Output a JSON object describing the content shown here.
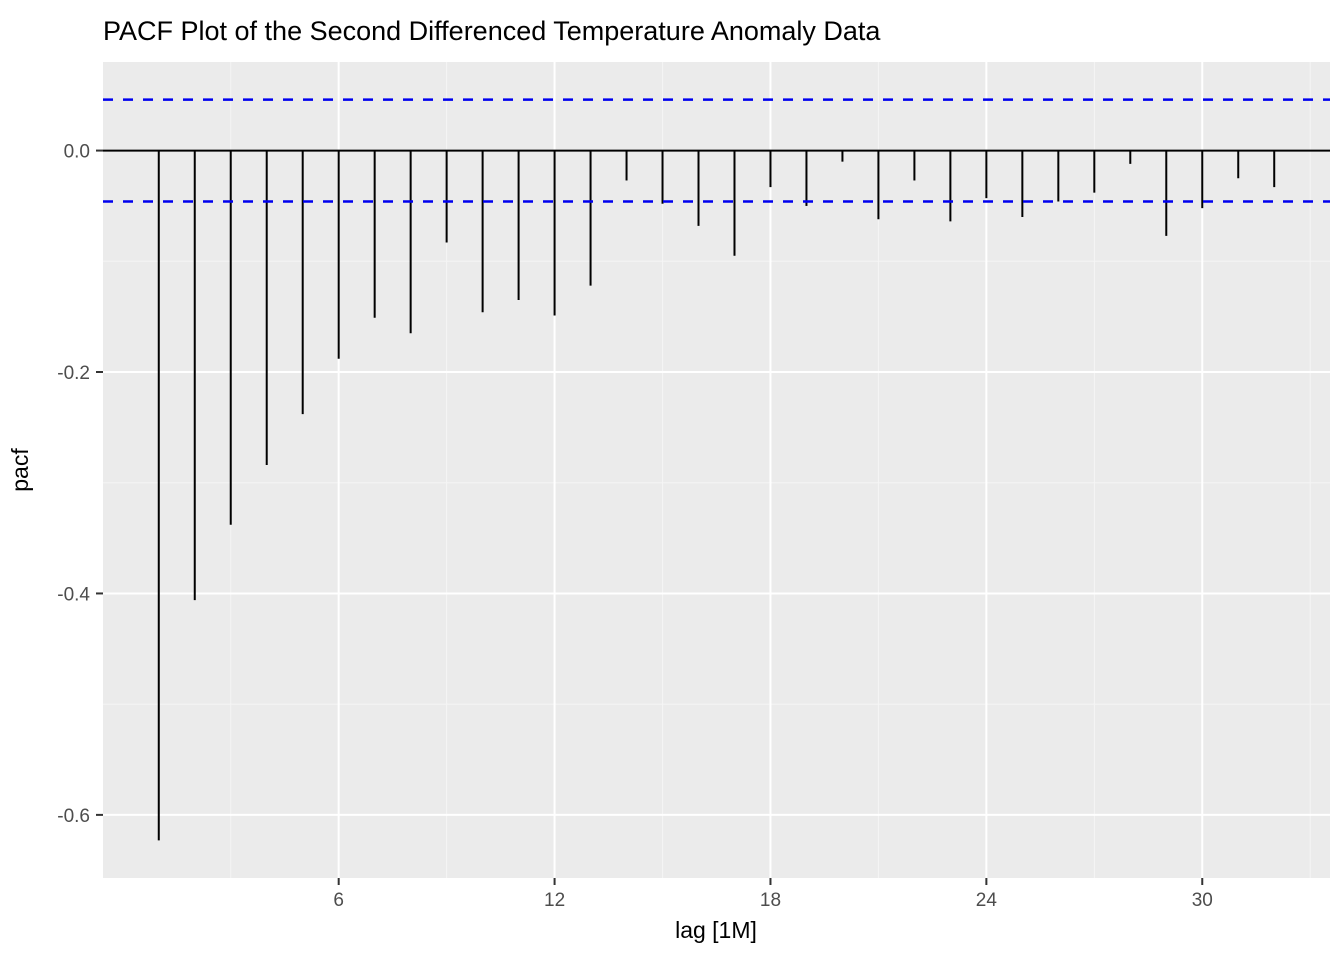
{
  "chart_data": {
    "type": "bar",
    "title": "PACF Plot of the Second Differenced Temperature Anomaly Data",
    "xlabel": "lag [1M]",
    "ylabel": "pacf",
    "x": [
      1,
      2,
      3,
      4,
      5,
      6,
      7,
      8,
      9,
      10,
      11,
      12,
      13,
      14,
      15,
      16,
      17,
      18,
      19,
      20,
      21,
      22,
      23,
      24,
      25,
      26,
      27,
      28,
      29,
      30,
      31,
      32
    ],
    "values": [
      -0.623,
      -0.406,
      -0.338,
      -0.284,
      -0.238,
      -0.188,
      -0.151,
      -0.165,
      -0.083,
      -0.146,
      -0.135,
      -0.149,
      -0.122,
      -0.027,
      -0.048,
      -0.068,
      -0.095,
      -0.033,
      -0.05,
      -0.01,
      -0.062,
      -0.027,
      -0.064,
      -0.043,
      -0.06,
      -0.046,
      -0.038,
      -0.012,
      -0.077,
      -0.052,
      -0.025,
      -0.033
    ],
    "confidence_upper": 0.046,
    "confidence_lower": -0.046,
    "xlim": [
      -0.55,
      33.55
    ],
    "ylim": [
      -0.657,
      0.08
    ],
    "xticks": [
      6,
      12,
      18,
      24,
      30
    ],
    "xtick_labels": [
      "6",
      "12",
      "18",
      "24",
      "30"
    ],
    "xticks_minor": [
      3,
      9,
      15,
      21,
      27,
      33
    ],
    "yticks": [
      0.0,
      -0.2,
      -0.4,
      -0.6
    ],
    "ytick_labels": [
      "0.0",
      "-0.2",
      "-0.4",
      "-0.6"
    ],
    "yticks_minor": [
      -0.1,
      -0.3,
      -0.5
    ],
    "grid": true,
    "legend": "none",
    "colors": {
      "panel_background": "#EBEBEB",
      "grid_major": "#FFFFFF",
      "grid_minor": "#F5F5F5",
      "bar": "#000000",
      "zero_line": "#000000",
      "confidence_line": "#0000EE",
      "tick_label": "#4D4D4D",
      "tick_mark": "#333333"
    }
  }
}
